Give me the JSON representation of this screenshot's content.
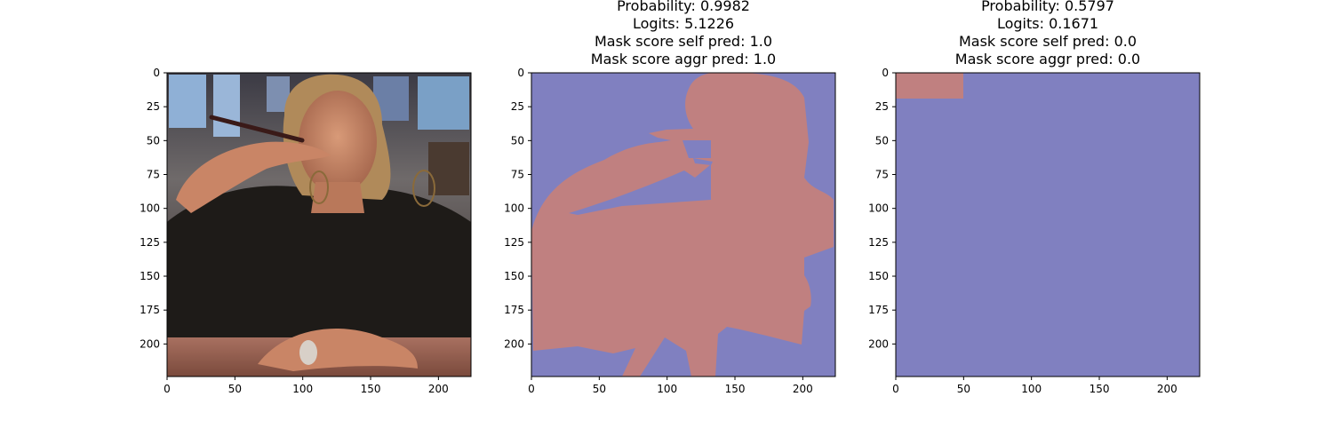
{
  "chart_data": [
    {
      "type": "image",
      "title_lines": [],
      "x_ticks": [
        0,
        50,
        100,
        150,
        200
      ],
      "y_ticks": [
        0,
        25,
        50,
        75,
        100,
        125,
        150,
        175,
        200
      ],
      "xlim": [
        0,
        224
      ],
      "ylim": [
        224,
        0
      ]
    },
    {
      "type": "heatmap",
      "title_lines": [
        "Probability: 0.9982",
        "Logits: 5.1226",
        "Mask score self pred: 1.0",
        "Mask score aggr pred: 1.0"
      ],
      "x_ticks": [
        0,
        50,
        100,
        150,
        200
      ],
      "y_ticks": [
        0,
        25,
        50,
        75,
        100,
        125,
        150,
        175,
        200
      ],
      "xlim": [
        0,
        224
      ],
      "ylim": [
        224,
        0
      ],
      "colors": {
        "background": "#8080c0",
        "mask": "#c08080"
      }
    },
    {
      "type": "heatmap",
      "title_lines": [
        "Probability: 0.5797",
        "Logits: 0.1671",
        "Mask score self pred: 0.0",
        "Mask score aggr pred: 0.0"
      ],
      "x_ticks": [
        0,
        50,
        100,
        150,
        200
      ],
      "y_ticks": [
        0,
        25,
        50,
        75,
        100,
        125,
        150,
        175,
        200
      ],
      "xlim": [
        0,
        224
      ],
      "ylim": [
        224,
        0
      ],
      "colors": {
        "background": "#8080c0",
        "mask": "#c08080"
      }
    }
  ]
}
